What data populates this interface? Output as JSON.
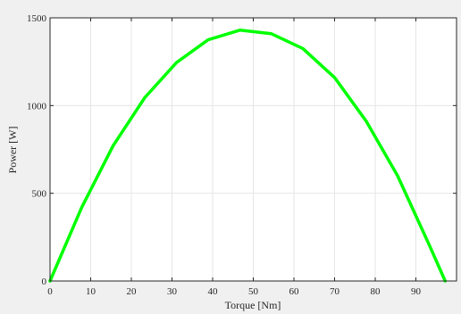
{
  "figure": {
    "background": "#f0f0f0"
  },
  "chart_data": {
    "type": "line",
    "title": "",
    "xlabel": "Torque [Nm]",
    "ylabel": "Power [W]",
    "xlim": [
      0,
      100
    ],
    "ylim": [
      0,
      1500
    ],
    "xticks": [
      0,
      10,
      20,
      30,
      40,
      50,
      60,
      70,
      80,
      90
    ],
    "yticks": [
      0,
      500,
      1000,
      1500
    ],
    "grid": true,
    "colors": {
      "line": "#00ff00",
      "axes_bg": "#ffffff",
      "grid": "#e6e6e6",
      "axis": "#262626"
    },
    "series": [
      {
        "x": [
          0,
          7.8,
          15.5,
          23.3,
          31.1,
          38.9,
          46.7,
          54.4,
          62.2,
          70,
          77.8,
          85.5,
          93.3,
          97.2
        ],
        "y": [
          0,
          420,
          770,
          1045,
          1245,
          1375,
          1430,
          1410,
          1325,
          1160,
          910,
          600,
          205,
          0
        ]
      }
    ]
  }
}
